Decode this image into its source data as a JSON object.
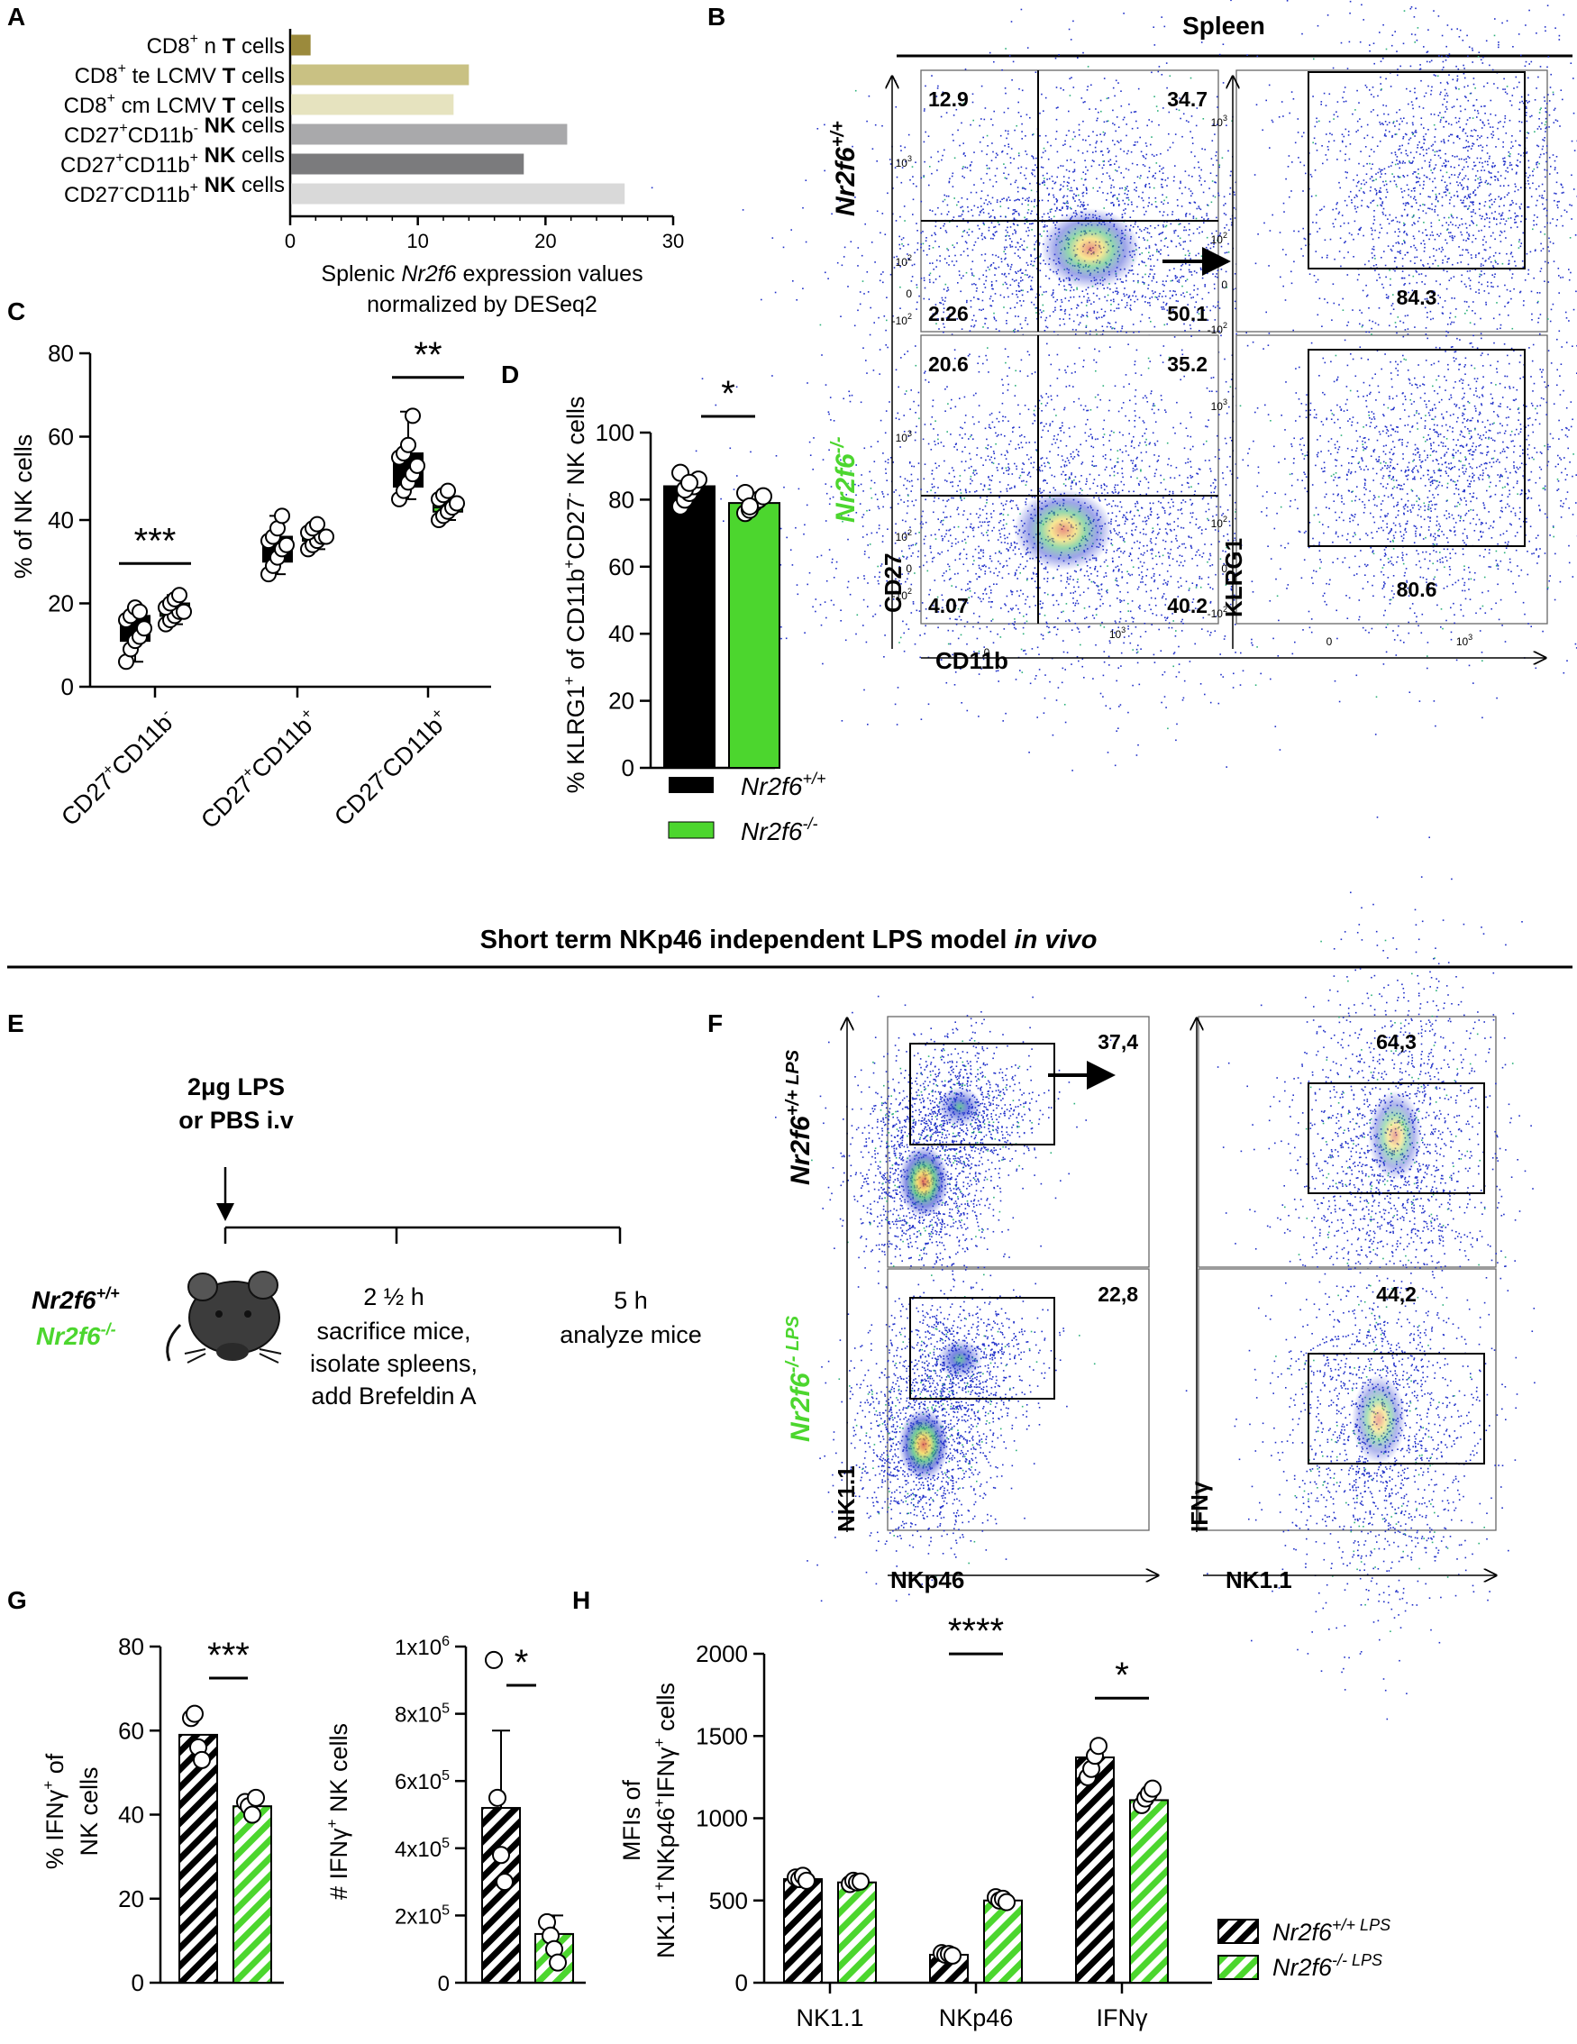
{
  "colors": {
    "wt": "#000000",
    "ko": "#4cd62e",
    "tan_dark": "#9b8a3c",
    "tan_mid": "#c9c183",
    "tan_light": "#e6e3bf",
    "grey1": "#a9a9ab",
    "grey2": "#7b7b7d",
    "grey3": "#d9d9d9",
    "flow_blue": "#1a1aa8"
  },
  "panels": {
    "A": "A",
    "B": "B",
    "C": "C",
    "D": "D",
    "E": "E",
    "F": "F",
    "G": "G",
    "H": "H"
  },
  "headers": {
    "spleen": "Spleen",
    "lps_model": "Short term NKp46 independent LPS model",
    "lps_model_italic": "in vivo"
  },
  "genotypes": {
    "wt": "Nr2f6",
    "wt_sup": "+/+",
    "ko": "Nr2f6",
    "ko_sup": "-/-",
    "wt_lps_sup": "+/+ LPS",
    "ko_lps_sup": "-/- LPS"
  },
  "chart_data": [
    {
      "id": "A",
      "type": "bar",
      "orientation": "horizontal",
      "categories": [
        {
          "pre": "CD8",
          "sup": "+",
          "mid": " n ",
          "bold": "T",
          "post": " cells"
        },
        {
          "pre": "CD8",
          "sup": "+",
          "mid": " te LCMV ",
          "bold": "T",
          "post": " cells"
        },
        {
          "pre": "CD8",
          "sup": "+",
          "mid": " cm  LCMV ",
          "bold": "T",
          "post": " cells"
        },
        {
          "pre": "CD27",
          "sup": "+",
          "mid": "CD11b",
          "sup2": "-",
          "bold": " NK",
          "post": " cells"
        },
        {
          "pre": "CD27",
          "sup": "+",
          "mid": "CD11b",
          "sup2": "+",
          "bold": " NK",
          "post": " cells"
        },
        {
          "pre": "CD27",
          "sup": "-",
          "mid": "CD11b",
          "sup2": "+",
          "bold": " NK",
          "post": " cells"
        }
      ],
      "values": [
        1.6,
        14.0,
        12.8,
        21.7,
        18.3,
        26.2
      ],
      "xlim": [
        0,
        30
      ],
      "xticks": [
        "0",
        "10",
        "20",
        "30"
      ],
      "xlabel_line1_pre": "Splenic ",
      "xlabel_line1_it": "Nr2f6",
      "xlabel_line1_post": " expression values",
      "xlabel_line2": "normalized by DESeq2"
    },
    {
      "id": "C",
      "type": "box",
      "ylabel": "% of NK cells",
      "ylim": [
        0,
        80
      ],
      "yticks": [
        "0",
        "20",
        "40",
        "60",
        "80"
      ],
      "groups": [
        {
          "label_a": "CD27",
          "sup_a": "+",
          "label_b": "CD11b",
          "sup_b": "-",
          "wt": {
            "min": 6,
            "q1": 11,
            "med": 15,
            "q3": 17,
            "max": 19,
            "pts": [
              6,
              9,
              11,
              12,
              14,
              16,
              17,
              19,
              18
            ]
          },
          "ko": {
            "min": 15,
            "q1": 17,
            "med": 18,
            "q3": 20,
            "max": 22,
            "pts": [
              15,
              16,
              17,
              18,
              18,
              19,
              20,
              21,
              22
            ]
          },
          "sig": "***"
        },
        {
          "label_a": "CD27",
          "sup_a": "+",
          "label_b": "CD11b",
          "sup_b": "+",
          "wt": {
            "min": 27,
            "q1": 30,
            "med": 34,
            "q3": 36,
            "max": 41,
            "pts": [
              27,
              29,
              31,
              33,
              34,
              35,
              36,
              38,
              41
            ]
          },
          "ko": {
            "min": 33,
            "q1": 35,
            "med": 36,
            "q3": 37,
            "max": 39,
            "pts": [
              33,
              34,
              35,
              36,
              36,
              37,
              38,
              39
            ]
          },
          "sig": ""
        },
        {
          "label_a": "CD27",
          "sup_a": "-",
          "label_b": "CD11b",
          "sup_b": "+",
          "wt": {
            "min": 45,
            "q1": 48,
            "med": 52,
            "q3": 56,
            "max": 66,
            "pts": [
              45,
              47,
              49,
              51,
              53,
              55,
              56,
              58,
              65
            ]
          },
          "ko": {
            "min": 40,
            "q1": 42,
            "med": 43,
            "q3": 45,
            "max": 47,
            "pts": [
              40,
              41,
              42,
              43,
              44,
              45,
              46,
              47
            ]
          },
          "sig": "**"
        }
      ]
    },
    {
      "id": "D",
      "type": "bar",
      "ylabel_pre": "% KLRG1",
      "ylabel_sup1": "+",
      "ylabel_mid": " of CD11b",
      "ylabel_sup2": "+",
      "ylabel_mid2": "CD27",
      "ylabel_sup3": "-",
      "ylabel_post": " NK cells",
      "ylim": [
        0,
        100
      ],
      "yticks": [
        "0",
        "20",
        "40",
        "60",
        "80",
        "100"
      ],
      "series": [
        {
          "name": "wt",
          "value": 84,
          "pts": [
            78,
            80,
            82,
            84,
            86,
            88,
            83,
            85
          ]
        },
        {
          "name": "ko",
          "value": 79,
          "pts": [
            76,
            77,
            79,
            80,
            81,
            82,
            78
          ]
        }
      ],
      "sig": "*"
    },
    {
      "id": "G1",
      "type": "bar",
      "ylabel_pre": "% IFN",
      "ylabel_g": "γ",
      "ylabel_sup": "+",
      "ylabel_post": " of",
      "ylabel_line2": "NK cells",
      "ylim": [
        0,
        80
      ],
      "yticks": [
        "0",
        "20",
        "40",
        "60",
        "80"
      ],
      "series": [
        {
          "name": "wt",
          "value": 59,
          "pts": [
            63,
            64,
            56,
            53
          ]
        },
        {
          "name": "ko",
          "value": 42,
          "pts": [
            43,
            42,
            40,
            44
          ]
        }
      ],
      "sig": "***"
    },
    {
      "id": "G2",
      "type": "bar",
      "ylabel_pre": "# IFN",
      "ylabel_g": "γ",
      "ylabel_sup": "+",
      "ylabel_post": " NK cells",
      "ylim": [
        0,
        1000000
      ],
      "yticks": [
        "0",
        "2x10",
        "4x10",
        "6x10",
        "8x10",
        "1x10"
      ],
      "ytick_exp": [
        "",
        "5",
        "5",
        "5",
        "5",
        "6"
      ],
      "series": [
        {
          "name": "wt",
          "value": 520000,
          "err": 230000,
          "pts": [
            960000,
            550000,
            380000,
            300000
          ]
        },
        {
          "name": "ko",
          "value": 145000,
          "err": 55000,
          "pts": [
            180000,
            140000,
            100000,
            60000
          ]
        }
      ],
      "sig": "*"
    },
    {
      "id": "H",
      "type": "bar",
      "ylabel_line1": "MFIs of",
      "ylabel_line2_pre": "NK1.1",
      "ylabel_line2_sup": "+",
      "ylabel_line2_mid": "NKp46",
      "ylabel_line2_sup2": "+",
      "ylabel_line2_mid2": "IFN",
      "ylabel_line2_g": "γ",
      "ylabel_line2_sup3": "+",
      "ylabel_line2_post": " cells",
      "ylim": [
        0,
        2000
      ],
      "yticks": [
        "0",
        "500",
        "1000",
        "1500",
        "2000"
      ],
      "categories": [
        "NK1.1",
        "NKp46",
        "IFNγ"
      ],
      "series": [
        {
          "name": "wt",
          "values": [
            630,
            170,
            1370
          ],
          "pts": [
            [
              640,
              630,
              650,
              620
            ],
            [
              180,
              170,
              175,
              165
            ],
            [
              1250,
              1300,
              1380,
              1440
            ]
          ]
        },
        {
          "name": "ko",
          "values": [
            610,
            500,
            1110
          ],
          "pts": [
            [
              600,
              620,
              610,
              615
            ],
            [
              520,
              500,
              510,
              490
            ],
            [
              1080,
              1120,
              1150,
              1180
            ]
          ]
        }
      ],
      "sigs": [
        "",
        "****",
        "*"
      ]
    }
  ],
  "flow": {
    "B_wt_quads": [
      "12.9",
      "34.7",
      "2.26",
      "50.1"
    ],
    "B_ko_quads": [
      "20.6",
      "35.2",
      "4.07",
      "40.2"
    ],
    "B_wt_klrg": "84.3",
    "B_ko_klrg": "80.6",
    "B_x": "CD11b",
    "B_y": "CD27",
    "B_x2": "",
    "B_y2": "KLRG1",
    "B_ticks": {
      "t103": "10",
      "e3": "3",
      "t102": "10",
      "e2": "2",
      "t0": "0",
      "tm102": "-10",
      "em": "2"
    },
    "F_wt_gate": "37,4",
    "F_ko_gate": "22,8",
    "F_wt_ifn": "64,3",
    "F_ko_ifn": "44,2",
    "F_x": "NKp46",
    "F_y": "NK1.1",
    "F_x2": "NK1.1",
    "F_y2": "IFNγ"
  },
  "schematic": {
    "dose": "2μg LPS",
    "route": "or PBS  i.v",
    "t1": "2 ½ h",
    "t1_a": "sacrifice mice,",
    "t1_b": "isolate spleens,",
    "t1_c": "add Brefeldin A",
    "t2": "5 h",
    "t2_a": "analyze mice"
  }
}
